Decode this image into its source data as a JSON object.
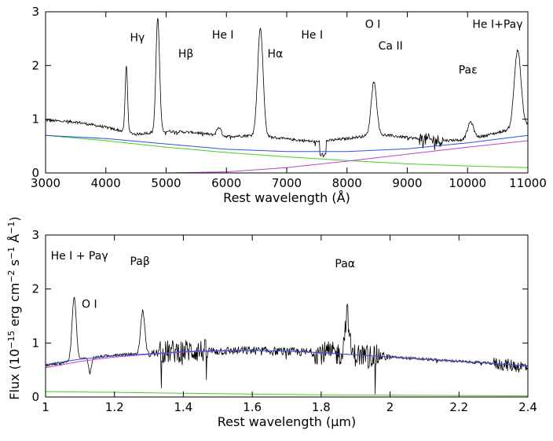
{
  "chart_data": [
    {
      "type": "line",
      "panel": "top",
      "xlabel": "Rest wavelength (Å)",
      "xlim": [
        3000,
        11000
      ],
      "ylim": [
        0,
        3
      ],
      "xticks": [
        3000,
        4000,
        5000,
        6000,
        7000,
        8000,
        9000,
        10000,
        11000
      ],
      "xtick_labels": [
        "3000",
        "4000",
        "5000",
        "6000",
        "7000",
        "8000",
        "9000",
        "10000",
        "11000"
      ],
      "yticks": [
        0,
        1,
        2,
        3
      ],
      "ytick_labels": [
        "0",
        "1",
        "2",
        "3"
      ],
      "colors": {
        "data": "#000000",
        "blue": "#3050e0",
        "green": "#40d020",
        "magenta": "#c040d0"
      },
      "series": [
        {
          "name": "blue",
          "x": [
            3000,
            4000,
            5000,
            6000,
            7000,
            8000,
            9000,
            10000,
            11000
          ],
          "y": [
            0.7,
            0.64,
            0.54,
            0.44,
            0.4,
            0.4,
            0.45,
            0.56,
            0.7
          ]
        },
        {
          "name": "green",
          "x": [
            3000,
            4000,
            5000,
            6000,
            7000,
            8000,
            9000,
            10000,
            11000
          ],
          "y": [
            0.7,
            0.6,
            0.48,
            0.38,
            0.3,
            0.23,
            0.17,
            0.13,
            0.1
          ]
        },
        {
          "name": "magenta",
          "x": [
            3000,
            5000,
            6000,
            7000,
            8000,
            9000,
            10000,
            11000
          ],
          "y": [
            0.0,
            0.0,
            0.02,
            0.1,
            0.22,
            0.35,
            0.48,
            0.6
          ]
        },
        {
          "name": "spectrum_continuum",
          "x": [
            3000,
            3500,
            4000,
            4500,
            5000,
            5500,
            6000,
            6500,
            7000,
            7500,
            8000,
            8500,
            9000,
            9500,
            10000,
            10500,
            11000
          ],
          "y": [
            0.98,
            0.95,
            0.85,
            0.72,
            0.78,
            0.75,
            0.68,
            0.7,
            0.63,
            0.58,
            0.64,
            0.72,
            0.66,
            0.6,
            0.62,
            0.75,
            0.9
          ]
        }
      ],
      "lines": [
        {
          "center": 4340,
          "height": 2.0,
          "width": 20
        },
        {
          "center": 4861,
          "height": 2.9,
          "width": 30
        },
        {
          "center": 5876,
          "height": 0.85,
          "width": 35
        },
        {
          "center": 6563,
          "height": 2.7,
          "width": 45
        },
        {
          "center": 8446,
          "height": 1.7,
          "width": 45
        },
        {
          "center": 10049,
          "height": 0.95,
          "width": 50
        },
        {
          "center": 10830,
          "height": 2.3,
          "width": 55
        }
      ],
      "annotations": [
        {
          "text": "Hγ",
          "x": 4400,
          "y": 2.45
        },
        {
          "text": "Hβ",
          "x": 5200,
          "y": 2.15
        },
        {
          "text": "He I",
          "x": 5760,
          "y": 2.5
        },
        {
          "text": "Hα",
          "x": 6680,
          "y": 2.15
        },
        {
          "text": "He I",
          "x": 7240,
          "y": 2.5
        },
        {
          "text": "O I",
          "x": 8300,
          "y": 2.7
        },
        {
          "text": "Ca II",
          "x": 8520,
          "y": 2.3
        },
        {
          "text": "Paε",
          "x": 9850,
          "y": 1.85
        },
        {
          "text": "He I+Paγ",
          "x": 10080,
          "y": 2.7
        }
      ]
    },
    {
      "type": "line",
      "panel": "bottom",
      "xlabel": "Rest wavelength (μm)",
      "xlim": [
        1.0,
        2.4
      ],
      "ylim": [
        0,
        3
      ],
      "xticks": [
        1.0,
        1.2,
        1.4,
        1.6,
        1.8,
        2.0,
        2.2,
        2.4
      ],
      "xtick_labels": [
        "1",
        "1.2",
        "1.4",
        "1.6",
        "1.8",
        "2",
        "2.2",
        "2.4"
      ],
      "yticks": [
        0,
        1,
        2,
        3
      ],
      "ytick_labels": [
        "0",
        "1",
        "2",
        "3"
      ],
      "colors": {
        "data": "#000000",
        "blue": "#3050e0",
        "green": "#40d020",
        "magenta": "#c040d0"
      },
      "series": [
        {
          "name": "blue",
          "x": [
            1.0,
            1.1,
            1.2,
            1.3,
            1.4,
            1.5,
            1.6,
            1.7,
            1.8,
            1.9,
            2.0,
            2.1,
            2.2,
            2.3,
            2.4
          ],
          "y": [
            0.6,
            0.7,
            0.76,
            0.8,
            0.84,
            0.86,
            0.86,
            0.85,
            0.82,
            0.78,
            0.74,
            0.7,
            0.66,
            0.62,
            0.58
          ]
        },
        {
          "name": "magenta",
          "x": [
            1.0,
            1.1,
            1.2,
            1.3,
            1.4,
            1.5,
            1.6,
            1.7,
            1.8,
            1.9,
            2.0,
            2.1,
            2.2,
            2.3,
            2.4
          ],
          "y": [
            0.54,
            0.66,
            0.74,
            0.79,
            0.83,
            0.85,
            0.86,
            0.85,
            0.82,
            0.78,
            0.74,
            0.7,
            0.66,
            0.62,
            0.58
          ]
        },
        {
          "name": "green",
          "x": [
            1.0,
            1.4,
            1.8,
            2.4
          ],
          "y": [
            0.1,
            0.07,
            0.04,
            0.02
          ]
        },
        {
          "name": "spectrum_continuum",
          "x": [
            1.0,
            1.1,
            1.2,
            1.3,
            1.4,
            1.5,
            1.6,
            1.7,
            1.8,
            1.9,
            2.0,
            2.1,
            2.2,
            2.3,
            2.4
          ],
          "y": [
            0.58,
            0.7,
            0.78,
            0.8,
            0.86,
            0.85,
            0.86,
            0.84,
            0.82,
            0.78,
            0.74,
            0.7,
            0.66,
            0.62,
            0.55
          ]
        }
      ],
      "lines": [
        {
          "center": 1.083,
          "height": 1.85,
          "width": 0.006
        },
        {
          "center": 1.129,
          "height": 0.45,
          "width": 0.004
        },
        {
          "center": 1.282,
          "height": 1.6,
          "width": 0.006
        },
        {
          "center": 1.875,
          "height": 1.55,
          "width": 0.006
        }
      ],
      "annotations": [
        {
          "text": "He I + Paγ",
          "x": 1.015,
          "y": 2.55
        },
        {
          "text": "O I",
          "x": 1.105,
          "y": 1.65
        },
        {
          "text": "Paβ",
          "x": 1.245,
          "y": 2.45
        },
        {
          "text": "Paα",
          "x": 1.84,
          "y": 2.4
        }
      ]
    }
  ],
  "shared_ylabel": {
    "base": "Flux (10",
    "exp1": "−15",
    "mid1": " erg cm",
    "exp2": "−2",
    "mid2": " s",
    "exp3": "−1",
    "mid3": " Å",
    "exp4": "−1",
    "end": ")"
  }
}
